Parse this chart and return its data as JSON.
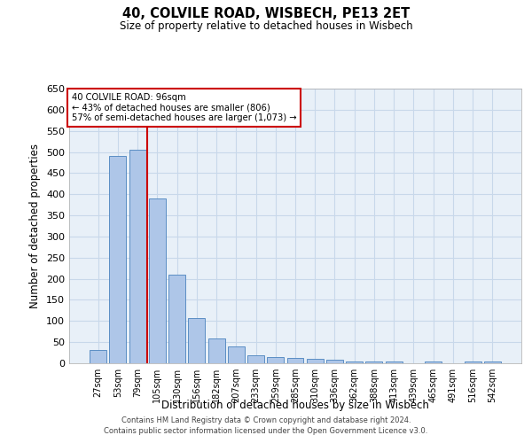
{
  "title1": "40, COLVILE ROAD, WISBECH, PE13 2ET",
  "title2": "Size of property relative to detached houses in Wisbech",
  "xlabel": "Distribution of detached houses by size in Wisbech",
  "ylabel": "Number of detached properties",
  "categories": [
    "27sqm",
    "53sqm",
    "79sqm",
    "105sqm",
    "130sqm",
    "156sqm",
    "182sqm",
    "207sqm",
    "233sqm",
    "259sqm",
    "285sqm",
    "310sqm",
    "336sqm",
    "362sqm",
    "388sqm",
    "413sqm",
    "439sqm",
    "465sqm",
    "491sqm",
    "516sqm",
    "542sqm"
  ],
  "values": [
    32,
    491,
    506,
    391,
    209,
    107,
    59,
    40,
    19,
    15,
    12,
    11,
    9,
    5,
    5,
    5,
    0,
    5,
    0,
    5,
    5
  ],
  "bar_color": "#aec6e8",
  "bar_edge_color": "#5b8ec4",
  "vline_x": 2.5,
  "vline_color": "#cc0000",
  "annotation_line1": "40 COLVILE ROAD: 96sqm",
  "annotation_line2": "← 43% of detached houses are smaller (806)",
  "annotation_line3": "57% of semi-detached houses are larger (1,073) →",
  "annotation_box_color": "#cc0000",
  "ylim": [
    0,
    650
  ],
  "yticks": [
    0,
    50,
    100,
    150,
    200,
    250,
    300,
    350,
    400,
    450,
    500,
    550,
    600,
    650
  ],
  "grid_color": "#c8d8ea",
  "bg_color": "#e8f0f8",
  "footer1": "Contains HM Land Registry data © Crown copyright and database right 2024.",
  "footer2": "Contains public sector information licensed under the Open Government Licence v3.0."
}
